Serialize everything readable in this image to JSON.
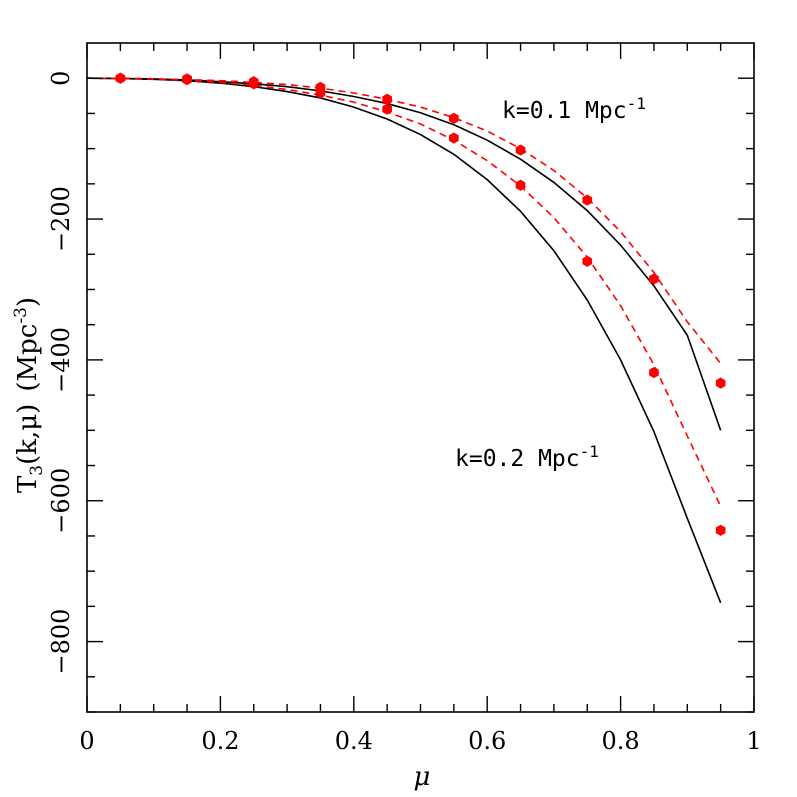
{
  "chart_data": {
    "type": "line",
    "xlabel": "μ",
    "ylabel_main": "T",
    "ylabel_sub": "3",
    "ylabel_args": "(k,μ)",
    "ylabel_units": "(Mpc",
    "ylabel_units_sup": "-3",
    "ylabel_units_close": ")",
    "xlim": [
      0,
      1
    ],
    "ylim": [
      -900,
      50
    ],
    "x_ticks": [
      0,
      0.2,
      0.4,
      0.6,
      0.8,
      1
    ],
    "x_tick_labels": [
      "0",
      "0.2",
      "0.4",
      "0.6",
      "0.8",
      "1"
    ],
    "y_ticks": [
      0,
      -200,
      -400,
      -600,
      -800
    ],
    "y_tick_labels": [
      "0",
      "−200",
      "−400",
      "−600",
      "−800"
    ],
    "grid": false,
    "annotations": [
      {
        "id": "k01",
        "text": "k=0.1 Mpc",
        "sup": "-1"
      },
      {
        "id": "k02",
        "text": "k=0.2 Mpc",
        "sup": "-1"
      }
    ],
    "series": [
      {
        "style": "solid",
        "color": "#000000",
        "k": 0.1,
        "x": [
          0.0,
          0.05,
          0.1,
          0.15,
          0.2,
          0.25,
          0.3,
          0.35,
          0.4,
          0.45,
          0.5,
          0.55,
          0.6,
          0.65,
          0.7,
          0.75,
          0.8,
          0.85,
          0.9,
          0.95
        ],
        "y": [
          0,
          -0.3,
          -1,
          -2.5,
          -5,
          -8,
          -12,
          -18,
          -26,
          -36,
          -49,
          -66,
          -88,
          -115,
          -148,
          -188,
          -237,
          -295,
          -365,
          -500
        ]
      },
      {
        "style": "dashed",
        "color": "#ff0000",
        "k": 0.1,
        "x": [
          0.0,
          0.05,
          0.1,
          0.15,
          0.2,
          0.25,
          0.3,
          0.35,
          0.4,
          0.45,
          0.5,
          0.55,
          0.6,
          0.65,
          0.7,
          0.75,
          0.8,
          0.85,
          0.9,
          0.95
        ],
        "y": [
          0,
          -0.2,
          -1,
          -2,
          -3.5,
          -6,
          -9,
          -14,
          -21,
          -30,
          -41,
          -56,
          -75,
          -100,
          -131,
          -170,
          -218,
          -276,
          -346,
          -405
        ]
      },
      {
        "style": "solid",
        "color": "#000000",
        "k": 0.2,
        "x": [
          0.0,
          0.05,
          0.1,
          0.15,
          0.2,
          0.25,
          0.3,
          0.35,
          0.4,
          0.45,
          0.5,
          0.55,
          0.6,
          0.65,
          0.7,
          0.75,
          0.8,
          0.85,
          0.9,
          0.95
        ],
        "y": [
          0,
          -0.4,
          -1.5,
          -3.5,
          -7,
          -12,
          -19,
          -28,
          -41,
          -58,
          -80,
          -108,
          -144,
          -189,
          -245,
          -315,
          -400,
          -502,
          -625,
          -745
        ]
      },
      {
        "style": "dashed",
        "color": "#ff0000",
        "k": 0.2,
        "x": [
          0.0,
          0.05,
          0.1,
          0.15,
          0.2,
          0.25,
          0.3,
          0.35,
          0.4,
          0.45,
          0.5,
          0.55,
          0.6,
          0.65,
          0.7,
          0.75,
          0.8,
          0.85,
          0.9,
          0.95
        ],
        "y": [
          0,
          -0.3,
          -1.2,
          -3,
          -6,
          -10,
          -16,
          -24,
          -34,
          -48,
          -65,
          -88,
          -117,
          -153,
          -198,
          -254,
          -323,
          -407,
          -508,
          -608
        ]
      },
      {
        "style": "points",
        "color": "#ff0000",
        "k": 0.1,
        "x": [
          0.05,
          0.15,
          0.25,
          0.35,
          0.45,
          0.55,
          0.65,
          0.75,
          0.85,
          0.95
        ],
        "y": [
          0,
          -1,
          -5,
          -13,
          -30,
          -57,
          -102,
          -173,
          -285,
          -433
        ]
      },
      {
        "style": "points",
        "color": "#ff0000",
        "k": 0.2,
        "x": [
          0.05,
          0.15,
          0.25,
          0.35,
          0.45,
          0.55,
          0.65,
          0.75,
          0.85,
          0.95
        ],
        "y": [
          0,
          -2,
          -8,
          -21,
          -44,
          -85,
          -152,
          -260,
          -418,
          -642
        ]
      }
    ]
  }
}
